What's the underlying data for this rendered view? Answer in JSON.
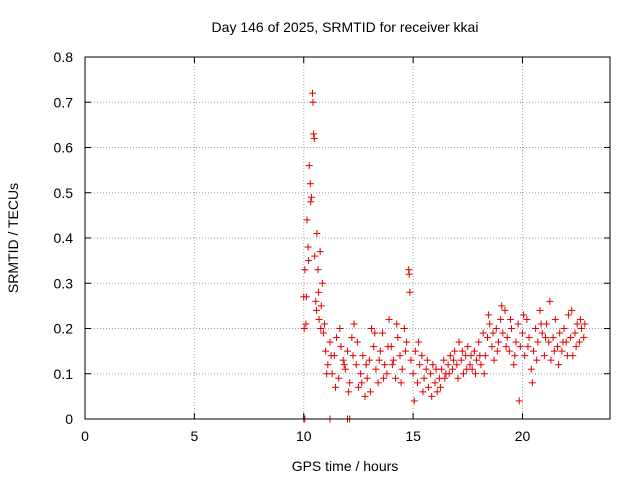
{
  "chart_data": {
    "type": "scatter",
    "title": "Day 146 of 2025, SRMTID for receiver kkai",
    "xlabel": "GPS time / hours",
    "ylabel": "SRMTID / TECUs",
    "xlim": [
      0,
      24
    ],
    "ylim": [
      0,
      0.8
    ],
    "x_ticks": [
      0,
      5,
      10,
      15,
      20
    ],
    "x_tick_labels": [
      "0",
      "5",
      "10",
      "15",
      "20"
    ],
    "y_ticks": [
      0,
      0.1,
      0.2,
      0.3,
      0.4,
      0.5,
      0.6,
      0.7,
      0.8
    ],
    "y_tick_labels": [
      "0",
      "0.1",
      "0.2",
      "0.3",
      "0.4",
      "0.5",
      "0.6",
      "0.7",
      "0.8"
    ],
    "grid": true,
    "marker": "+",
    "series": [
      {
        "name": "SRMTID",
        "color": "#e00000",
        "points": [
          [
            10.0,
            0.0
          ],
          [
            10.05,
            0.0
          ],
          [
            11.2,
            0.0
          ],
          [
            12.0,
            0.0
          ],
          [
            12.1,
            0.0
          ],
          [
            10.0,
            0.27
          ],
          [
            10.05,
            0.33
          ],
          [
            10.1,
            0.21
          ],
          [
            10.15,
            0.44
          ],
          [
            10.2,
            0.38
          ],
          [
            10.25,
            0.56
          ],
          [
            10.3,
            0.52
          ],
          [
            10.35,
            0.49
          ],
          [
            10.4,
            0.72
          ],
          [
            10.45,
            0.63
          ],
          [
            10.5,
            0.36
          ],
          [
            10.55,
            0.26
          ],
          [
            10.6,
            0.41
          ],
          [
            10.65,
            0.33
          ],
          [
            10.7,
            0.22
          ],
          [
            10.75,
            0.37
          ],
          [
            10.8,
            0.25
          ],
          [
            10.85,
            0.3
          ],
          [
            10.9,
            0.19
          ],
          [
            10.95,
            0.21
          ],
          [
            10.02,
            0.2
          ],
          [
            10.12,
            0.27
          ],
          [
            10.22,
            0.35
          ],
          [
            10.32,
            0.48
          ],
          [
            10.42,
            0.7
          ],
          [
            10.48,
            0.62
          ],
          [
            10.58,
            0.24
          ],
          [
            10.68,
            0.28
          ],
          [
            10.78,
            0.2
          ],
          [
            11.0,
            0.15
          ],
          [
            11.1,
            0.12
          ],
          [
            11.2,
            0.17
          ],
          [
            11.3,
            0.1
          ],
          [
            11.4,
            0.14
          ],
          [
            11.5,
            0.18
          ],
          [
            11.6,
            0.09
          ],
          [
            11.7,
            0.16
          ],
          [
            11.8,
            0.13
          ],
          [
            11.9,
            0.11
          ],
          [
            12.0,
            0.15
          ],
          [
            12.1,
            0.08
          ],
          [
            12.2,
            0.18
          ],
          [
            12.3,
            0.21
          ],
          [
            12.4,
            0.12
          ],
          [
            12.5,
            0.07
          ],
          [
            12.6,
            0.1
          ],
          [
            12.7,
            0.14
          ],
          [
            12.8,
            0.05
          ],
          [
            12.9,
            0.09
          ],
          [
            13.0,
            0.13
          ],
          [
            13.1,
            0.2
          ],
          [
            13.2,
            0.16
          ],
          [
            13.3,
            0.11
          ],
          [
            13.4,
            0.08
          ],
          [
            13.5,
            0.15
          ],
          [
            13.6,
            0.19
          ],
          [
            13.7,
            0.12
          ],
          [
            13.8,
            0.1
          ],
          [
            13.9,
            0.22
          ],
          [
            14.0,
            0.16
          ],
          [
            14.1,
            0.13
          ],
          [
            14.2,
            0.09
          ],
          [
            14.3,
            0.18
          ],
          [
            14.4,
            0.14
          ],
          [
            14.5,
            0.11
          ],
          [
            14.6,
            0.2
          ],
          [
            14.7,
            0.17
          ],
          [
            14.8,
            0.33
          ],
          [
            14.82,
            0.32
          ],
          [
            14.9,
            0.13
          ],
          [
            15.0,
            0.1
          ],
          [
            15.1,
            0.15
          ],
          [
            15.2,
            0.08
          ],
          [
            15.3,
            0.12
          ],
          [
            15.4,
            0.14
          ],
          [
            15.5,
            0.09
          ],
          [
            15.6,
            0.11
          ],
          [
            15.7,
            0.07
          ],
          [
            15.8,
            0.1
          ],
          [
            15.9,
            0.12
          ],
          [
            16.0,
            0.08
          ],
          [
            16.1,
            0.06
          ],
          [
            16.2,
            0.09
          ],
          [
            16.3,
            0.11
          ],
          [
            16.4,
            0.13
          ],
          [
            16.5,
            0.1
          ],
          [
            16.6,
            0.12
          ],
          [
            16.7,
            0.14
          ],
          [
            16.8,
            0.11
          ],
          [
            16.9,
            0.15
          ],
          [
            17.0,
            0.12
          ],
          [
            17.1,
            0.17
          ],
          [
            17.2,
            0.13
          ],
          [
            17.3,
            0.1
          ],
          [
            17.4,
            0.14
          ],
          [
            17.5,
            0.16
          ],
          [
            17.6,
            0.12
          ],
          [
            17.7,
            0.11
          ],
          [
            17.8,
            0.15
          ],
          [
            17.9,
            0.13
          ],
          [
            18.0,
            0.17
          ],
          [
            18.1,
            0.12
          ],
          [
            18.2,
            0.19
          ],
          [
            18.3,
            0.14
          ],
          [
            18.4,
            0.18
          ],
          [
            18.5,
            0.21
          ],
          [
            18.6,
            0.16
          ],
          [
            18.7,
            0.13
          ],
          [
            18.8,
            0.2
          ],
          [
            18.9,
            0.17
          ],
          [
            19.0,
            0.22
          ],
          [
            19.1,
            0.19
          ],
          [
            19.2,
            0.24
          ],
          [
            19.3,
            0.18
          ],
          [
            19.4,
            0.15
          ],
          [
            19.5,
            0.2
          ],
          [
            19.6,
            0.12
          ],
          [
            19.7,
            0.17
          ],
          [
            19.8,
            0.21
          ],
          [
            19.9,
            0.16
          ],
          [
            20.0,
            0.19
          ],
          [
            20.1,
            0.14
          ],
          [
            20.2,
            0.22
          ],
          [
            20.3,
            0.18
          ],
          [
            20.4,
            0.11
          ],
          [
            20.5,
            0.15
          ],
          [
            20.6,
            0.2
          ],
          [
            20.7,
            0.17
          ],
          [
            20.8,
            0.24
          ],
          [
            20.9,
            0.19
          ],
          [
            21.0,
            0.14
          ],
          [
            21.1,
            0.21
          ],
          [
            21.2,
            0.17
          ],
          [
            21.3,
            0.13
          ],
          [
            21.4,
            0.18
          ],
          [
            21.5,
            0.22
          ],
          [
            21.6,
            0.16
          ],
          [
            21.7,
            0.19
          ],
          [
            21.8,
            0.15
          ],
          [
            21.9,
            0.2
          ],
          [
            22.0,
            0.17
          ],
          [
            22.1,
            0.23
          ],
          [
            22.2,
            0.18
          ],
          [
            22.3,
            0.14
          ],
          [
            22.4,
            0.19
          ],
          [
            22.5,
            0.21
          ],
          [
            22.6,
            0.17
          ],
          [
            22.7,
            0.2
          ],
          [
            22.8,
            0.18
          ],
          [
            11.05,
            0.1
          ],
          [
            11.25,
            0.14
          ],
          [
            11.45,
            0.07
          ],
          [
            11.65,
            0.2
          ],
          [
            11.85,
            0.12
          ],
          [
            12.05,
            0.06
          ],
          [
            12.25,
            0.14
          ],
          [
            12.45,
            0.17
          ],
          [
            12.65,
            0.08
          ],
          [
            12.85,
            0.12
          ],
          [
            13.05,
            0.06
          ],
          [
            13.25,
            0.19
          ],
          [
            13.45,
            0.13
          ],
          [
            13.65,
            0.09
          ],
          [
            13.85,
            0.16
          ],
          [
            14.05,
            0.12
          ],
          [
            14.25,
            0.21
          ],
          [
            14.45,
            0.08
          ],
          [
            14.65,
            0.15
          ],
          [
            14.85,
            0.28
          ],
          [
            15.05,
            0.04
          ],
          [
            15.25,
            0.17
          ],
          [
            15.45,
            0.06
          ],
          [
            15.65,
            0.13
          ],
          [
            15.85,
            0.05
          ],
          [
            16.05,
            0.11
          ],
          [
            16.25,
            0.07
          ],
          [
            16.45,
            0.09
          ],
          [
            16.65,
            0.1
          ],
          [
            16.85,
            0.13
          ],
          [
            17.05,
            0.09
          ],
          [
            17.25,
            0.15
          ],
          [
            17.45,
            0.11
          ],
          [
            17.65,
            0.14
          ],
          [
            17.85,
            0.1
          ],
          [
            18.05,
            0.14
          ],
          [
            18.25,
            0.1
          ],
          [
            18.45,
            0.23
          ],
          [
            18.65,
            0.19
          ],
          [
            18.85,
            0.15
          ],
          [
            19.05,
            0.25
          ],
          [
            19.25,
            0.16
          ],
          [
            19.45,
            0.22
          ],
          [
            19.65,
            0.14
          ],
          [
            19.85,
            0.04
          ],
          [
            20.05,
            0.23
          ],
          [
            20.25,
            0.16
          ],
          [
            20.45,
            0.08
          ],
          [
            20.65,
            0.13
          ],
          [
            20.85,
            0.21
          ],
          [
            21.05,
            0.18
          ],
          [
            21.25,
            0.26
          ],
          [
            21.45,
            0.15
          ],
          [
            21.65,
            0.12
          ],
          [
            21.85,
            0.17
          ],
          [
            22.05,
            0.14
          ],
          [
            22.25,
            0.24
          ],
          [
            22.45,
            0.16
          ],
          [
            22.65,
            0.22
          ],
          [
            22.85,
            0.21
          ]
        ]
      }
    ]
  }
}
